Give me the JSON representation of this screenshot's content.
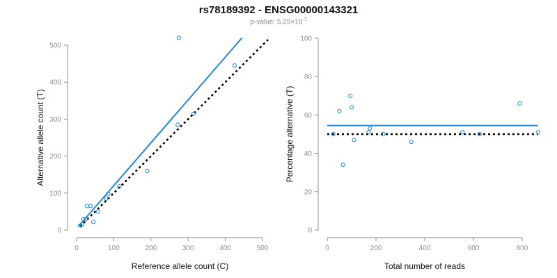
{
  "title": "rs78189392 - ENSG00000143321",
  "subtitle": {
    "prefix": "p-value: 5.25×10",
    "exponent": "-7"
  },
  "chart_data": [
    {
      "type": "scatter",
      "xlabel": "Reference allele count (C)",
      "ylabel": "Alternative allele count (T)",
      "xlim": [
        0,
        500
      ],
      "ylim": [
        0,
        500
      ],
      "xticks": [
        0,
        100,
        200,
        300,
        400,
        500
      ],
      "yticks": [
        0,
        100,
        200,
        300,
        400,
        500
      ],
      "grid": false,
      "point_color": "#1f88d6",
      "fit_color": "#1f88e5",
      "points": [
        [
          10,
          12
        ],
        [
          15,
          15
        ],
        [
          18,
          30
        ],
        [
          25,
          30
        ],
        [
          28,
          65
        ],
        [
          38,
          65
        ],
        [
          45,
          22
        ],
        [
          58,
          50
        ],
        [
          80,
          85
        ],
        [
          85,
          98
        ],
        [
          115,
          118
        ],
        [
          190,
          160
        ],
        [
          272,
          285
        ],
        [
          275,
          520
        ],
        [
          315,
          315
        ],
        [
          425,
          445
        ]
      ],
      "fit_line": [
        [
          5,
          10
        ],
        [
          445,
          520
        ]
      ],
      "reference_line": [
        [
          10,
          10
        ],
        [
          515,
          515
        ]
      ]
    },
    {
      "type": "scatter",
      "xlabel": "Total number of reads",
      "ylabel": "Percentage alternative (T)",
      "xlim": [
        0,
        800
      ],
      "ylim": [
        0,
        100
      ],
      "xticks": [
        0,
        200,
        400,
        600,
        800
      ],
      "yticks": [
        0,
        20,
        40,
        60,
        80,
        100
      ],
      "grid": false,
      "point_color": "#1f88d6",
      "fit_color": "#1f88e5",
      "points": [
        [
          25,
          50
        ],
        [
          50,
          62
        ],
        [
          65,
          34
        ],
        [
          95,
          70
        ],
        [
          100,
          64
        ],
        [
          110,
          47
        ],
        [
          170,
          51
        ],
        [
          175,
          53
        ],
        [
          230,
          50
        ],
        [
          345,
          46
        ],
        [
          555,
          51
        ],
        [
          625,
          50
        ],
        [
          790,
          66
        ],
        [
          865,
          51
        ]
      ],
      "fit_line": [
        [
          0,
          54.5
        ],
        [
          865,
          54.5
        ]
      ],
      "reference_line": [
        [
          0,
          50
        ],
        [
          865,
          50
        ]
      ]
    }
  ]
}
